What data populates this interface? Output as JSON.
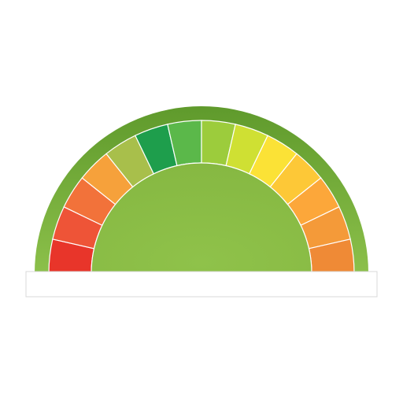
{
  "gauge": {
    "segment_count": 14,
    "colors": {
      "rim_dark": "#5f9a2c",
      "rim_light": "#8cc04a",
      "hub": "#8bbd45",
      "divider": "#ffffff",
      "base_plate": "#ffffff",
      "base_plate_border": "#d8d8d8"
    },
    "segments": [
      {
        "color": "#e8352a"
      },
      {
        "color": "#ee5437"
      },
      {
        "color": "#f2723a"
      },
      {
        "color": "#f6a13b"
      },
      {
        "color": "#a8bf4b"
      },
      {
        "color": "#1e9e4c"
      },
      {
        "color": "#5bb84a"
      },
      {
        "color": "#9ccc3c"
      },
      {
        "color": "#cfe033"
      },
      {
        "color": "#fbe236"
      },
      {
        "color": "#fdc837"
      },
      {
        "color": "#fca73a"
      },
      {
        "color": "#f49a39"
      },
      {
        "color": "#ef8a36"
      }
    ]
  }
}
